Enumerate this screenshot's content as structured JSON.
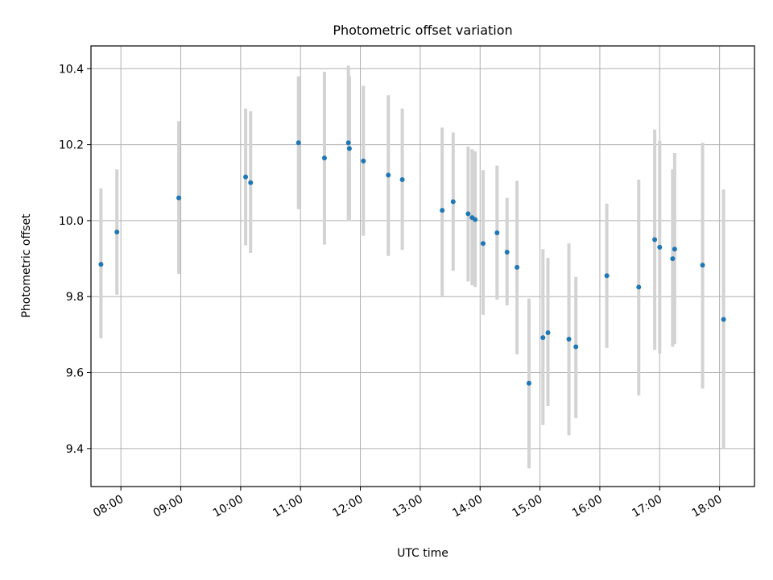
{
  "chart_data": {
    "type": "scatter",
    "title": "Photometric offset variation",
    "xlabel": "UTC time",
    "ylabel": "Photometric offset",
    "x_type": "time",
    "xlim": [
      "07:30",
      "18:35"
    ],
    "ylim": [
      9.3,
      10.46
    ],
    "x_ticks": [
      "08:00",
      "09:00",
      "10:00",
      "11:00",
      "12:00",
      "13:00",
      "14:00",
      "15:00",
      "16:00",
      "17:00",
      "18:00"
    ],
    "y_ticks": [
      "9.4",
      "9.6",
      "9.8",
      "10.0",
      "10.2",
      "10.4"
    ],
    "grid": true,
    "legend": "none",
    "marker_color": "#1f77b4",
    "errorbar_color": "#d3d3d3",
    "points": [
      {
        "x": "07:40",
        "y": 9.885,
        "ylow": 9.69,
        "yhigh": 10.085
      },
      {
        "x": "07:56",
        "y": 9.97,
        "ylow": 9.805,
        "yhigh": 10.135
      },
      {
        "x": "08:58",
        "y": 10.06,
        "ylow": 9.86,
        "yhigh": 10.262
      },
      {
        "x": "10:05",
        "y": 10.115,
        "ylow": 9.935,
        "yhigh": 10.295
      },
      {
        "x": "10:10",
        "y": 10.1,
        "ylow": 9.915,
        "yhigh": 10.288
      },
      {
        "x": "10:58",
        "y": 10.205,
        "ylow": 10.03,
        "yhigh": 10.38
      },
      {
        "x": "11:24",
        "y": 10.165,
        "ylow": 9.937,
        "yhigh": 10.392
      },
      {
        "x": "11:48",
        "y": 10.205,
        "ylow": 10.0,
        "yhigh": 10.408
      },
      {
        "x": "11:49",
        "y": 10.19,
        "ylow": 10.0,
        "yhigh": 10.38
      },
      {
        "x": "12:03",
        "y": 10.157,
        "ylow": 9.96,
        "yhigh": 10.355
      },
      {
        "x": "12:28",
        "y": 10.12,
        "ylow": 9.907,
        "yhigh": 10.33
      },
      {
        "x": "12:42",
        "y": 10.108,
        "ylow": 9.923,
        "yhigh": 10.295
      },
      {
        "x": "13:22",
        "y": 10.027,
        "ylow": 9.802,
        "yhigh": 10.245
      },
      {
        "x": "13:33",
        "y": 10.05,
        "ylow": 9.868,
        "yhigh": 10.232
      },
      {
        "x": "13:48",
        "y": 10.018,
        "ylow": 9.84,
        "yhigh": 10.195
      },
      {
        "x": "13:52",
        "y": 10.008,
        "ylow": 9.83,
        "yhigh": 10.188
      },
      {
        "x": "13:55",
        "y": 10.003,
        "ylow": 9.825,
        "yhigh": 10.183
      },
      {
        "x": "14:03",
        "y": 9.94,
        "ylow": 9.752,
        "yhigh": 10.133
      },
      {
        "x": "14:17",
        "y": 9.968,
        "ylow": 9.792,
        "yhigh": 10.145
      },
      {
        "x": "14:27",
        "y": 9.917,
        "ylow": 9.777,
        "yhigh": 10.06
      },
      {
        "x": "14:37",
        "y": 9.877,
        "ylow": 9.648,
        "yhigh": 10.105
      },
      {
        "x": "14:49",
        "y": 9.572,
        "ylow": 9.348,
        "yhigh": 9.795
      },
      {
        "x": "15:03",
        "y": 9.692,
        "ylow": 9.462,
        "yhigh": 9.925
      },
      {
        "x": "15:08",
        "y": 9.705,
        "ylow": 9.512,
        "yhigh": 9.902
      },
      {
        "x": "15:29",
        "y": 9.688,
        "ylow": 9.435,
        "yhigh": 9.94
      },
      {
        "x": "15:36",
        "y": 9.668,
        "ylow": 9.48,
        "yhigh": 9.852
      },
      {
        "x": "16:07",
        "y": 9.855,
        "ylow": 9.665,
        "yhigh": 10.045
      },
      {
        "x": "16:39",
        "y": 9.825,
        "ylow": 9.54,
        "yhigh": 10.108
      },
      {
        "x": "16:55",
        "y": 9.95,
        "ylow": 9.66,
        "yhigh": 10.24
      },
      {
        "x": "17:00",
        "y": 9.93,
        "ylow": 9.65,
        "yhigh": 10.21
      },
      {
        "x": "17:13",
        "y": 9.9,
        "ylow": 9.668,
        "yhigh": 10.135
      },
      {
        "x": "17:15",
        "y": 9.925,
        "ylow": 9.675,
        "yhigh": 10.178
      },
      {
        "x": "17:43",
        "y": 9.883,
        "ylow": 9.558,
        "yhigh": 10.205
      },
      {
        "x": "18:04",
        "y": 9.74,
        "ylow": 9.4,
        "yhigh": 10.082
      }
    ]
  }
}
